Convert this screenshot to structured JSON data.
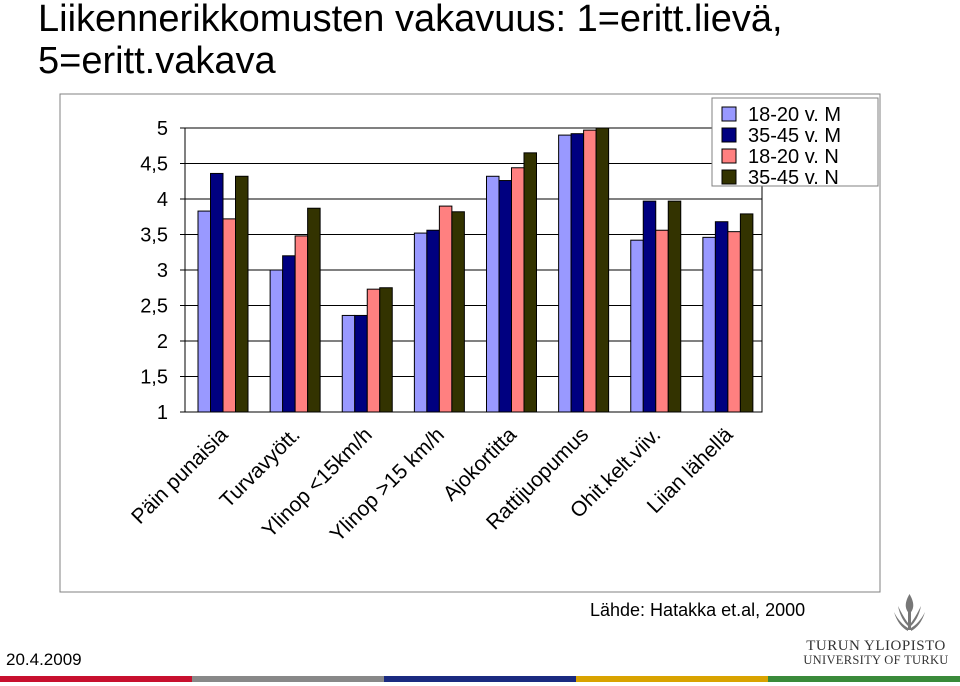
{
  "slide": {
    "title_line1": "Liikennerikkomusten vakavuus: 1=eritt.lievä,",
    "title_line2": "5=eritt.vakava",
    "source": "Lähde: Hatakka et.al, 2000",
    "date": "20.4.2009",
    "university": {
      "name_fi": "TURUN YLIOPISTO",
      "name_en": "UNIVERSITY OF TURKU",
      "emblem_icon": "torch-emblem-icon"
    },
    "footer_colors": [
      "#c8102e",
      "#888888",
      "#1a2a80",
      "#d9a300",
      "#3a8a3a"
    ]
  },
  "chart_data": {
    "type": "bar",
    "title": "Liikennerikkomusten vakavuus: 1=eritt.lievä, 5=eritt.vakava",
    "xlabel": "",
    "ylabel": "",
    "ylim": [
      1,
      5
    ],
    "yticks": [
      1,
      1.5,
      2,
      2.5,
      3,
      3.5,
      4,
      4.5,
      5
    ],
    "ytick_labels": [
      "1",
      "1,5",
      "2",
      "2,5",
      "3",
      "3,5",
      "4",
      "4,5",
      "5"
    ],
    "grid": true,
    "legend_position": "top-right",
    "categories": [
      "Päin punaisia",
      "Turvavyött.",
      "Ylinop <15km/h",
      "Ylinop >15 km/h",
      "Ajokortitta",
      "Rattijuopumus",
      "Ohit.kelt.viiv.",
      "Liian lähellä"
    ],
    "series": [
      {
        "name": "18-20 v. M",
        "color": "#9999ff",
        "values": [
          3.83,
          3.0,
          2.36,
          3.52,
          4.32,
          4.9,
          3.42,
          3.46
        ]
      },
      {
        "name": "35-45 v. M",
        "color": "#000080",
        "values": [
          4.36,
          3.2,
          2.36,
          3.56,
          4.26,
          4.92,
          3.97,
          3.68
        ]
      },
      {
        "name": "18-20 v. N",
        "color": "#ff8080",
        "values": [
          3.72,
          3.48,
          2.73,
          3.9,
          4.44,
          4.97,
          3.56,
          3.54
        ]
      },
      {
        "name": "35-45 v. N",
        "color": "#333300",
        "values": [
          4.32,
          3.87,
          2.75,
          3.82,
          4.65,
          5.0,
          3.97,
          3.79
        ]
      }
    ]
  }
}
